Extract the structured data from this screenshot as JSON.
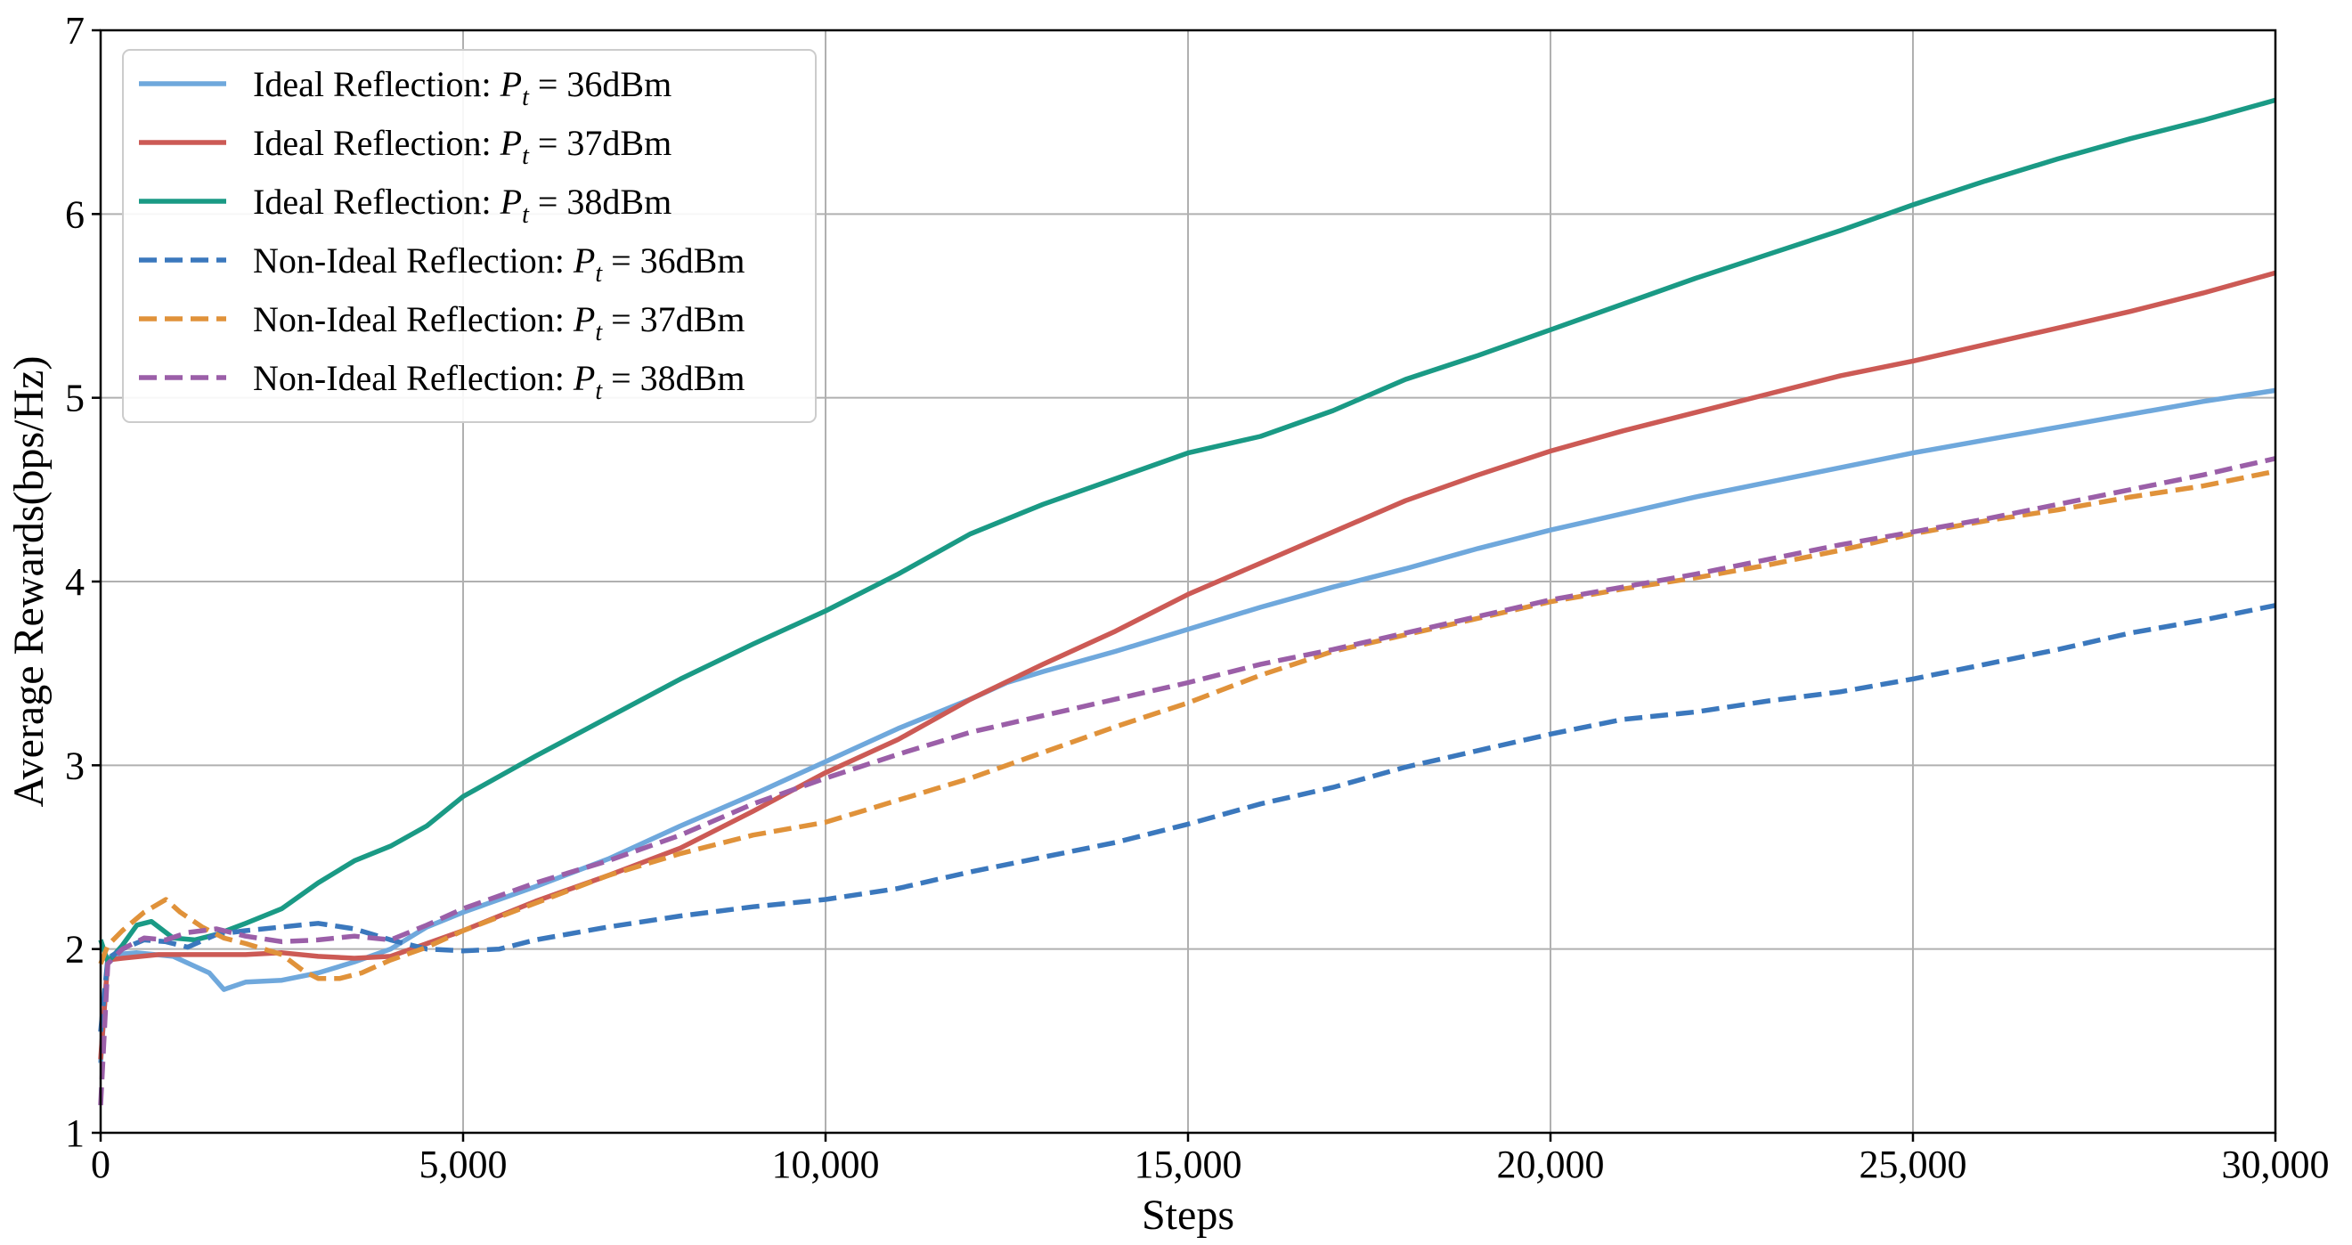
{
  "chart_data": {
    "type": "line",
    "title": "",
    "xlabel": "Steps",
    "ylabel": "Average Rewards(bps/Hz)",
    "xlim": [
      0,
      30000
    ],
    "ylim": [
      1,
      7
    ],
    "xticks": [
      0,
      5000,
      10000,
      15000,
      20000,
      25000,
      30000
    ],
    "xtick_labels": [
      "0",
      "5,000",
      "10,000",
      "15,000",
      "20,000",
      "25,000",
      "30,000"
    ],
    "yticks": [
      1,
      2,
      3,
      4,
      5,
      6,
      7
    ],
    "ytick_labels": [
      "1",
      "2",
      "3",
      "4",
      "5",
      "6",
      "7"
    ],
    "grid": true,
    "legend_position": "top-left",
    "series": [
      {
        "name": "Ideal Reflection: P_t = 36dBm",
        "legend_prefix": "Ideal Reflection: ",
        "legend_suffix": " = 36dBm",
        "color": "#6fa8dc",
        "dash": "solid",
        "x": [
          0,
          100,
          200,
          500,
          1000,
          1500,
          1700,
          2000,
          2500,
          3000,
          3500,
          4000,
          4500,
          5000,
          6000,
          7000,
          8000,
          9000,
          10000,
          11000,
          12000,
          12500,
          13000,
          14000,
          15000,
          16000,
          17000,
          18000,
          19000,
          20000,
          21000,
          22000,
          23000,
          24000,
          25000,
          26000,
          27000,
          28000,
          29000,
          30000
        ],
        "y": [
          1.38,
          1.95,
          1.97,
          1.98,
          1.96,
          1.87,
          1.78,
          1.82,
          1.83,
          1.87,
          1.93,
          2.0,
          2.12,
          2.2,
          2.34,
          2.49,
          2.67,
          2.84,
          3.02,
          3.2,
          3.36,
          3.45,
          3.51,
          3.62,
          3.74,
          3.86,
          3.97,
          4.07,
          4.18,
          4.28,
          4.37,
          4.46,
          4.54,
          4.62,
          4.7,
          4.77,
          4.84,
          4.91,
          4.98,
          5.04
        ]
      },
      {
        "name": "Ideal Reflection: P_t = 37dBm",
        "legend_prefix": "Ideal Reflection: ",
        "legend_suffix": " = 37dBm",
        "color": "#cc5a55",
        "dash": "solid",
        "x": [
          0,
          100,
          300,
          800,
          1500,
          2000,
          2500,
          3000,
          3500,
          4000,
          4500,
          5000,
          6000,
          7000,
          8000,
          9000,
          10000,
          11000,
          12000,
          13000,
          14000,
          15000,
          16000,
          17000,
          18000,
          19000,
          20000,
          21000,
          22000,
          23000,
          24000,
          25000,
          26000,
          27000,
          28000,
          29000,
          30000
        ],
        "y": [
          1.4,
          1.94,
          1.95,
          1.97,
          1.97,
          1.97,
          1.98,
          1.96,
          1.95,
          1.96,
          2.03,
          2.1,
          2.26,
          2.4,
          2.55,
          2.75,
          2.96,
          3.14,
          3.36,
          3.55,
          3.73,
          3.93,
          4.1,
          4.27,
          4.44,
          4.58,
          4.71,
          4.82,
          4.92,
          5.02,
          5.12,
          5.2,
          5.29,
          5.38,
          5.47,
          5.57,
          5.68
        ]
      },
      {
        "name": "Ideal Reflection: P_t = 38dBm",
        "legend_prefix": "Ideal Reflection: ",
        "legend_suffix": " = 38dBm",
        "color": "#1a9a85",
        "dash": "solid",
        "x": [
          0,
          100,
          300,
          500,
          700,
          1000,
          1300,
          1600,
          2000,
          2500,
          3000,
          3500,
          4000,
          4500,
          5000,
          6000,
          7000,
          8000,
          9000,
          10000,
          11000,
          12000,
          13000,
          14000,
          15000,
          16000,
          17000,
          18000,
          19000,
          20000,
          21000,
          22000,
          23000,
          24000,
          25000,
          26000,
          27000,
          28000,
          29000,
          30000
        ],
        "y": [
          2.05,
          1.93,
          2.02,
          2.13,
          2.15,
          2.06,
          2.05,
          2.08,
          2.14,
          2.22,
          2.36,
          2.48,
          2.56,
          2.67,
          2.83,
          3.05,
          3.26,
          3.47,
          3.66,
          3.84,
          4.04,
          4.26,
          4.42,
          4.56,
          4.7,
          4.79,
          4.93,
          5.1,
          5.23,
          5.37,
          5.51,
          5.65,
          5.78,
          5.91,
          6.05,
          6.18,
          6.3,
          6.41,
          6.51,
          6.62
        ]
      },
      {
        "name": "Non-Ideal Reflection: P_t = 36dBm",
        "legend_prefix": "Non-Ideal Reflection: ",
        "legend_suffix": " = 36dBm",
        "color": "#3b78bd",
        "dash": "dashed",
        "x": [
          0,
          100,
          300,
          600,
          900,
          1200,
          1600,
          2000,
          2500,
          3000,
          3500,
          4000,
          4500,
          5000,
          5500,
          6000,
          7000,
          8000,
          9000,
          10000,
          11000,
          12000,
          13000,
          14000,
          15000,
          16000,
          17000,
          18000,
          19000,
          20000,
          21000,
          22000,
          23000,
          24000,
          25000,
          26000,
          27000,
          28000,
          29000,
          30000
        ],
        "y": [
          1.55,
          1.95,
          2.0,
          2.05,
          2.04,
          2.01,
          2.08,
          2.1,
          2.12,
          2.14,
          2.11,
          2.05,
          2.0,
          1.99,
          2.0,
          2.05,
          2.12,
          2.18,
          2.23,
          2.27,
          2.33,
          2.42,
          2.5,
          2.58,
          2.68,
          2.79,
          2.88,
          2.99,
          3.08,
          3.17,
          3.25,
          3.29,
          3.35,
          3.4,
          3.47,
          3.55,
          3.63,
          3.72,
          3.79,
          3.87
        ]
      },
      {
        "name": "Non-Ideal Reflection: P_t = 37dBm",
        "legend_prefix": "Non-Ideal Reflection: ",
        "legend_suffix": " = 37dBm",
        "color": "#e0923a",
        "dash": "dashed",
        "x": [
          0,
          100,
          300,
          600,
          900,
          1100,
          1400,
          1700,
          2000,
          2500,
          2800,
          3000,
          3300,
          3600,
          4000,
          4500,
          5000,
          6000,
          7000,
          8000,
          9000,
          10000,
          11000,
          12000,
          13000,
          14000,
          15000,
          16000,
          17000,
          18000,
          19000,
          20000,
          21000,
          22000,
          23000,
          24000,
          25000,
          26000,
          27000,
          28000,
          29000,
          30000
        ],
        "y": [
          1.92,
          2.02,
          2.1,
          2.2,
          2.27,
          2.2,
          2.12,
          2.06,
          2.03,
          1.97,
          1.88,
          1.84,
          1.84,
          1.87,
          1.94,
          2.01,
          2.1,
          2.25,
          2.4,
          2.52,
          2.62,
          2.69,
          2.81,
          2.93,
          3.07,
          3.21,
          3.34,
          3.49,
          3.62,
          3.71,
          3.8,
          3.89,
          3.96,
          4.02,
          4.09,
          4.17,
          4.26,
          4.33,
          4.39,
          4.46,
          4.52,
          4.6
        ]
      },
      {
        "name": "Non-Ideal Reflection: P_t = 38dBm",
        "legend_prefix": "Non-Ideal Reflection: ",
        "legend_suffix": " = 38dBm",
        "color": "#9b5fa8",
        "dash": "dashed",
        "x": [
          0,
          100,
          300,
          600,
          900,
          1200,
          1600,
          2000,
          2500,
          3000,
          3500,
          4000,
          4500,
          5000,
          6000,
          7000,
          8000,
          9000,
          10000,
          11000,
          12000,
          13000,
          14000,
          15000,
          16000,
          17000,
          18000,
          19000,
          20000,
          21000,
          22000,
          23000,
          24000,
          25000,
          26000,
          27000,
          28000,
          29000,
          30000
        ],
        "y": [
          1.15,
          1.92,
          2.0,
          2.06,
          2.05,
          2.09,
          2.11,
          2.07,
          2.04,
          2.05,
          2.07,
          2.05,
          2.13,
          2.22,
          2.36,
          2.48,
          2.62,
          2.79,
          2.93,
          3.06,
          3.18,
          3.27,
          3.36,
          3.45,
          3.55,
          3.63,
          3.72,
          3.81,
          3.9,
          3.97,
          4.04,
          4.12,
          4.2,
          4.27,
          4.34,
          4.42,
          4.5,
          4.58,
          4.67
        ]
      }
    ]
  }
}
